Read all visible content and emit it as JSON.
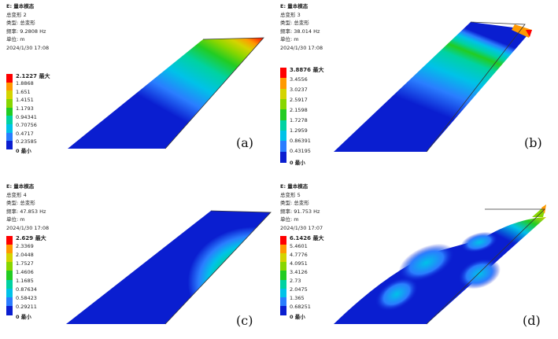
{
  "panels": [
    {
      "label": "(a)",
      "info": {
        "title": "E: 量本模态",
        "name": "总变形 2",
        "type": "类型: 总变形",
        "freq": "频率: 9.2808   Hz",
        "unit": "单位: m",
        "time": "2024/1/30 17:08"
      },
      "legend": {
        "max": "2.1227 最大",
        "values": [
          "1.8868",
          "1.651",
          "1.4151",
          "1.1793",
          "0.94341",
          "0.70756",
          "0.4717",
          "0.23585"
        ],
        "min": "0 最小"
      }
    },
    {
      "label": "(b)",
      "info": {
        "title": "E: 量本模态",
        "name": "总变形 3",
        "type": "类型: 总变形",
        "freq": "频率: 38.014   Hz",
        "unit": "单位: m",
        "time": "2024/1/30 17:08"
      },
      "legend": {
        "max": "3.8876 最大",
        "values": [
          "3.4556",
          "3.0237",
          "2.5917",
          "2.1598",
          "1.7278",
          "1.2959",
          "0.86391",
          "0.43195"
        ],
        "min": "0 最小"
      }
    },
    {
      "label": "(c)",
      "info": {
        "title": "E: 量本模态",
        "name": "总变形 4",
        "type": "类型: 总变形",
        "freq": "频率: 47.853   Hz",
        "unit": "单位: m",
        "time": "2024/1/30 17:08"
      },
      "legend": {
        "max": "2.629 最大",
        "values": [
          "2.3369",
          "2.0448",
          "1.7527",
          "1.4606",
          "1.1685",
          "0.87634",
          "0.58423",
          "0.29211"
        ],
        "min": "0 最小"
      }
    },
    {
      "label": "(d)",
      "info": {
        "title": "E: 量本模态",
        "name": "总变形 5",
        "type": "类型: 总变形",
        "freq": "频率: 91.753   Hz",
        "unit": "单位: m",
        "time": "2024/1/30 17:07"
      },
      "legend": {
        "max": "6.1426 最大",
        "values": [
          "5.4601",
          "4.7776",
          "4.0951",
          "3.4126",
          "2.73",
          "2.0475",
          "1.365",
          "0.68251"
        ],
        "min": "0 最小"
      }
    }
  ],
  "colors": {
    "scale": [
      "#ff0000",
      "#ff9900",
      "#d4d400",
      "#88d600",
      "#22cc22",
      "#00d2a2",
      "#00c2e8",
      "#2a7dff",
      "#0a1ed0"
    ]
  }
}
